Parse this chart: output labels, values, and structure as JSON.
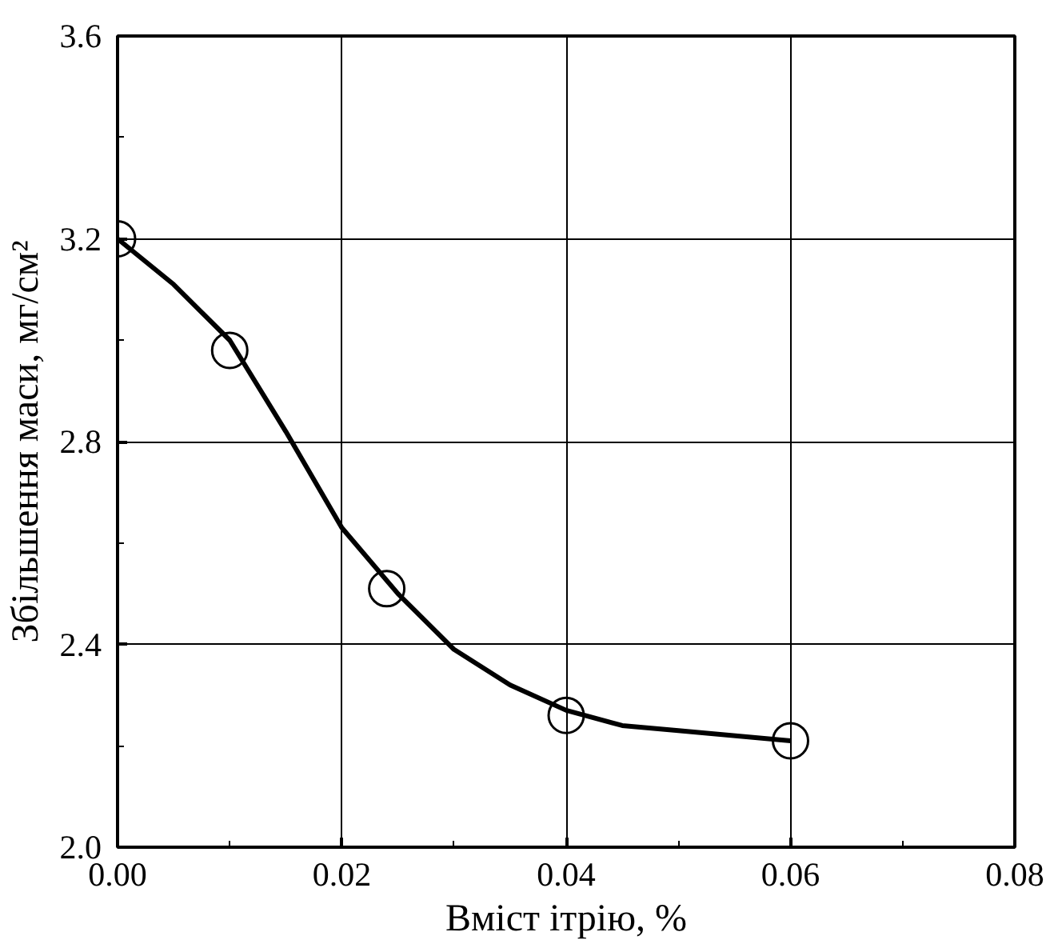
{
  "chart_data": {
    "type": "line",
    "xlabel": "Вміст ітрію, %",
    "ylabel": "Збільшення маси, мг/см²",
    "xlim": [
      0,
      0.08
    ],
    "ylim": [
      2.0,
      3.6
    ],
    "xticks": [
      {
        "value": 0,
        "label": "0.00"
      },
      {
        "value": 0.02,
        "label": "0.02"
      },
      {
        "value": 0.04,
        "label": "0.04"
      },
      {
        "value": 0.06,
        "label": "0.06"
      },
      {
        "value": 0.08,
        "label": "0.08"
      }
    ],
    "yticks": [
      {
        "value": 2.0,
        "label": "2.0"
      },
      {
        "value": 2.4,
        "label": "2.4"
      },
      {
        "value": 2.8,
        "label": "2.8"
      },
      {
        "value": 3.2,
        "label": "3.2"
      },
      {
        "value": 3.6,
        "label": "3.6"
      }
    ],
    "grid": true,
    "marker": "circle",
    "series": [
      {
        "color": "#000000",
        "marker": "none",
        "x": [
          0,
          0.005,
          0.01,
          0.015,
          0.02,
          0.025,
          0.03,
          0.035,
          0.04,
          0.045,
          0.05,
          0.06
        ],
        "values": [
          3.2,
          3.11,
          3.0,
          2.82,
          2.63,
          2.5,
          2.39,
          2.32,
          2.27,
          2.24,
          2.23,
          2.21
        ]
      },
      {
        "type": "scatter",
        "color": "#000000",
        "x": [
          0,
          0.01,
          0.024,
          0.04,
          0.06
        ],
        "values": [
          3.2,
          2.98,
          2.51,
          2.26,
          2.21
        ]
      }
    ]
  }
}
